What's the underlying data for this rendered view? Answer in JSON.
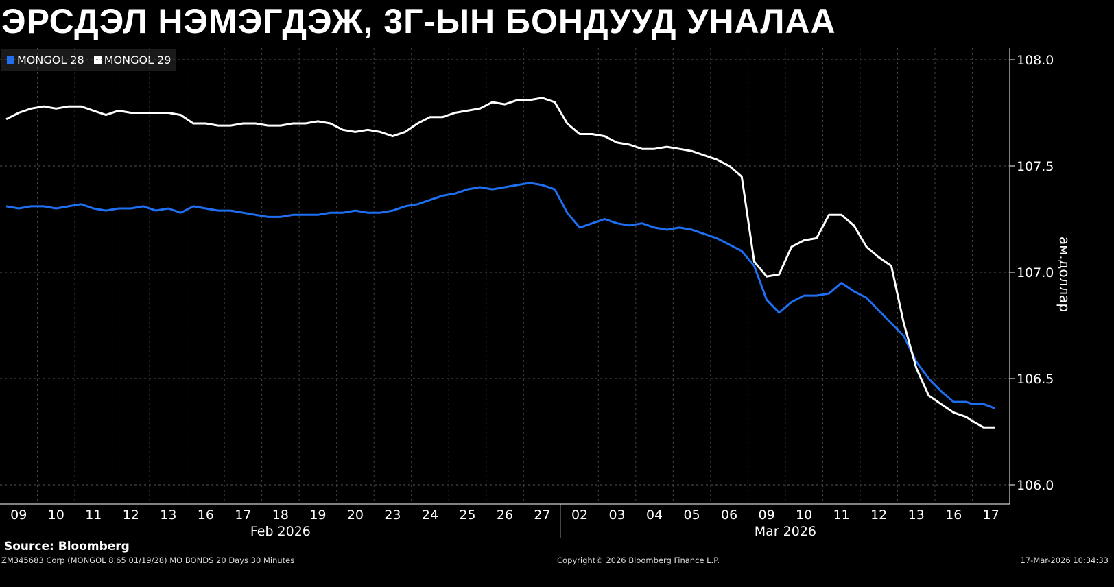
{
  "chart_data": {
    "type": "line",
    "title": "ЭРСДЭЛ НЭМЭГДЭЖ, 3Г-ЫН БОНДУУД УНАЛАА",
    "ylabel": "ам.доллар",
    "ylim": [
      105.91,
      108.05
    ],
    "yticks": [
      "108.0",
      "107.5",
      "107.0",
      "106.5",
      "106.0"
    ],
    "ytick_values": [
      108.0,
      107.5,
      107.0,
      106.5,
      106.0
    ],
    "grid": true,
    "legend_placement": "top-left",
    "dates": [
      "2026-02-09",
      "2026-02-10",
      "2026-02-11",
      "2026-02-12",
      "2026-02-13",
      "2026-02-16",
      "2026-02-17",
      "2026-02-18",
      "2026-02-19",
      "2026-02-20",
      "2026-02-23",
      "2026-02-24",
      "2026-02-25",
      "2026-02-26",
      "2026-02-27",
      "2026-03-02",
      "2026-03-03",
      "2026-03-04",
      "2026-03-05",
      "2026-03-06",
      "2026-03-09",
      "2026-03-10",
      "2026-03-11",
      "2026-03-12",
      "2026-03-13",
      "2026-03-16",
      "2026-03-17"
    ],
    "xtick_labels": [
      "09",
      "10",
      "11",
      "12",
      "13",
      "16",
      "17",
      "18",
      "19",
      "20",
      "23",
      "24",
      "25",
      "26",
      "27",
      "02",
      "03",
      "04",
      "05",
      "06",
      "09",
      "10",
      "11",
      "12",
      "13",
      "16",
      "17"
    ],
    "month_labels": [
      {
        "label": "Feb 2026",
        "first": 0,
        "last": 14
      },
      {
        "label": "Mar 2026",
        "first": 15,
        "last": 26
      }
    ],
    "series": [
      {
        "name": "MONGOL 28",
        "color": "#1f6ff2",
        "values": [
          [
            107.31,
            107.3,
            107.31
          ],
          [
            107.31,
            107.3,
            107.31
          ],
          [
            107.32,
            107.3,
            107.29
          ],
          [
            107.3,
            107.3,
            107.31
          ],
          [
            107.29,
            107.3,
            107.28
          ],
          [
            107.31,
            107.3,
            107.29
          ],
          [
            107.29,
            107.28,
            107.27
          ],
          [
            107.26,
            107.26,
            107.27
          ],
          [
            107.27,
            107.27,
            107.28
          ],
          [
            107.28,
            107.29,
            107.28
          ],
          [
            107.28,
            107.29,
            107.31
          ],
          [
            107.32,
            107.34,
            107.36
          ],
          [
            107.37,
            107.39,
            107.4
          ],
          [
            107.39,
            107.4,
            107.41
          ],
          [
            107.42,
            107.41,
            107.39
          ],
          [
            107.28,
            107.21,
            107.23
          ],
          [
            107.25,
            107.23,
            107.22
          ],
          [
            107.23,
            107.21,
            107.2
          ],
          [
            107.21,
            107.2,
            107.18
          ],
          [
            107.16,
            107.13,
            107.1
          ],
          [
            107.03,
            106.87,
            106.81
          ],
          [
            106.86,
            106.89,
            106.89
          ],
          [
            106.9,
            106.95,
            106.91
          ],
          [
            106.88,
            106.82,
            106.76
          ],
          [
            106.7,
            106.58,
            106.5
          ],
          [
            106.44,
            106.39,
            106.39
          ],
          [
            106.38,
            106.38,
            106.36
          ]
        ]
      },
      {
        "name": "MONGOL 29",
        "color": "#ffffff",
        "values": [
          [
            107.72,
            107.75,
            107.77
          ],
          [
            107.78,
            107.77,
            107.78
          ],
          [
            107.78,
            107.76,
            107.74
          ],
          [
            107.76,
            107.75,
            107.75
          ],
          [
            107.75,
            107.75,
            107.74
          ],
          [
            107.7,
            107.7,
            107.69
          ],
          [
            107.69,
            107.7,
            107.7
          ],
          [
            107.69,
            107.69,
            107.7
          ],
          [
            107.7,
            107.71,
            107.7
          ],
          [
            107.67,
            107.66,
            107.67
          ],
          [
            107.66,
            107.64,
            107.66
          ],
          [
            107.7,
            107.73,
            107.73
          ],
          [
            107.75,
            107.76,
            107.77
          ],
          [
            107.8,
            107.79,
            107.81
          ],
          [
            107.81,
            107.82,
            107.8
          ],
          [
            107.7,
            107.65,
            107.65
          ],
          [
            107.64,
            107.61,
            107.6
          ],
          [
            107.58,
            107.58,
            107.59
          ],
          [
            107.58,
            107.57,
            107.55
          ],
          [
            107.53,
            107.5,
            107.45
          ],
          [
            107.05,
            106.98,
            106.99
          ],
          [
            107.12,
            107.15,
            107.16
          ],
          [
            107.27,
            107.27,
            107.22
          ],
          [
            107.12,
            107.07,
            107.03
          ],
          [
            106.76,
            106.55,
            106.42
          ],
          [
            106.38,
            106.34,
            106.32
          ],
          [
            106.3,
            106.27,
            106.27
          ]
        ]
      }
    ]
  },
  "footer": {
    "source": "Source: Bloomberg",
    "ticker": "ZM345683 Corp (MONGOL 8.65 01/19/28) MO BONDS 20 Days 30 Minutes",
    "copyright": "Copyright© 2026 Bloomberg Finance L.P.",
    "timestamp": "17-Mar-2026 10:34:33"
  }
}
